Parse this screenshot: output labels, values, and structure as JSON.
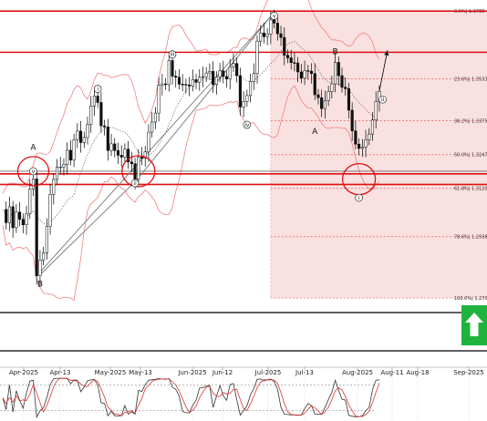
{
  "chart_data": {
    "type": "candlestick",
    "x_ticks": [
      "Apr-2025",
      "Apr-13",
      "May-2025",
      "May-13",
      "Jun-2025",
      "Jun-12",
      "Jul-2025",
      "Jul-13",
      "Aug-2025",
      "Aug-11",
      "Aug-18",
      "Sep-2025"
    ],
    "ylim": [
      1.268,
      1.383
    ],
    "resistance_levels": [
      1.3788,
      1.3633
    ],
    "support_levels": [
      1.3175,
      1.3135
    ],
    "fibonacci_levels": [
      {
        "label": "0.0%",
        "value": "1.3788"
      },
      {
        "label": "23.6%",
        "value": "1.3533"
      },
      {
        "label": "38.2%",
        "value": "1.3375"
      },
      {
        "label": "50.0%",
        "value": "1.3247"
      },
      {
        "label": "61.8%",
        "value": "1.3120"
      },
      {
        "label": "78.6%",
        "value": "1.2938"
      },
      {
        "label": "100.0%",
        "value": "1.2707"
      }
    ],
    "wave_labels": [
      {
        "text": "(A)",
        "bar": 79,
        "price": 1.3905,
        "size": "big"
      },
      {
        "text": "C",
        "bar": 79,
        "price": 1.3845,
        "size": "big"
      },
      {
        "text": "A",
        "bar": 9,
        "price": 1.3265,
        "size": "big"
      },
      {
        "text": "v",
        "bar": 9,
        "price": 1.3185,
        "size": "small"
      },
      {
        "text": "B",
        "bar": 11,
        "price": 1.275,
        "size": "big"
      },
      {
        "text": "i",
        "bar": 28,
        "price": 1.3495,
        "size": "small"
      },
      {
        "text": "ii",
        "bar": 39,
        "price": 1.314,
        "size": "small"
      },
      {
        "text": "iii",
        "bar": 50,
        "price": 1.3625,
        "size": "small"
      },
      {
        "text": "iv",
        "bar": 72,
        "price": 1.336,
        "size": "small"
      },
      {
        "text": "v",
        "bar": 80,
        "price": 1.377,
        "size": "small"
      },
      {
        "text": "A",
        "bar": 92,
        "price": 1.3325,
        "size": "big"
      },
      {
        "text": "B",
        "bar": 98,
        "price": 1.3625,
        "size": "big"
      },
      {
        "text": "i",
        "bar": 105,
        "price": 1.3085,
        "size": "small"
      },
      {
        "text": "ii",
        "bar": 112,
        "price": 1.3455,
        "size": "small"
      }
    ],
    "close_series": [
      1.3041,
      1.2991,
      1.3051,
      1.2972,
      1.3031,
      1.3004,
      1.2983,
      1.3025,
      1.3117,
      1.3156,
      1.2791,
      1.285,
      1.2878,
      1.2978,
      1.3098,
      1.3154,
      1.3201,
      1.3201,
      1.3211,
      1.3264,
      1.3227,
      1.3304,
      1.3336,
      1.3293,
      1.3312,
      1.3361,
      1.3431,
      1.3468,
      1.3444,
      1.3356,
      1.3352,
      1.3263,
      1.3288,
      1.3263,
      1.3245,
      1.3238,
      1.3268,
      1.322,
      1.3213,
      1.3155,
      1.3238,
      1.3234,
      1.3258,
      1.3332,
      1.337,
      1.3404,
      1.3508,
      1.3514,
      1.3511,
      1.3602,
      1.3543,
      1.3539,
      1.3513,
      1.3512,
      1.351,
      1.3506,
      1.353,
      1.352,
      1.3539,
      1.3541,
      1.3555,
      1.3561,
      1.3512,
      1.354,
      1.3563,
      1.3542,
      1.3532,
      1.3578,
      1.3591,
      1.3545,
      1.3427,
      1.3448,
      1.347,
      1.3523,
      1.3553,
      1.3675,
      1.3706,
      1.3692,
      1.3702,
      1.3755,
      1.3743,
      1.3703,
      1.3689,
      1.3622,
      1.3612,
      1.3594,
      1.3593,
      1.3559,
      1.3536,
      1.3564,
      1.3562,
      1.3553,
      1.3473,
      1.3462,
      1.3421,
      1.3451,
      1.3485,
      1.3514,
      1.3595,
      1.3545,
      1.3501,
      1.3496,
      1.3415,
      1.3337,
      1.3287,
      1.3271,
      1.3276,
      1.3303,
      1.3325,
      1.3378,
      1.3448,
      1.3486
    ],
    "projection_arrow": {
      "from_price": 1.3486,
      "to_price": 1.364
    }
  },
  "ui": {
    "buy_arrow_icon": "up-arrow-icon",
    "buy_color": "#1fb33d"
  }
}
